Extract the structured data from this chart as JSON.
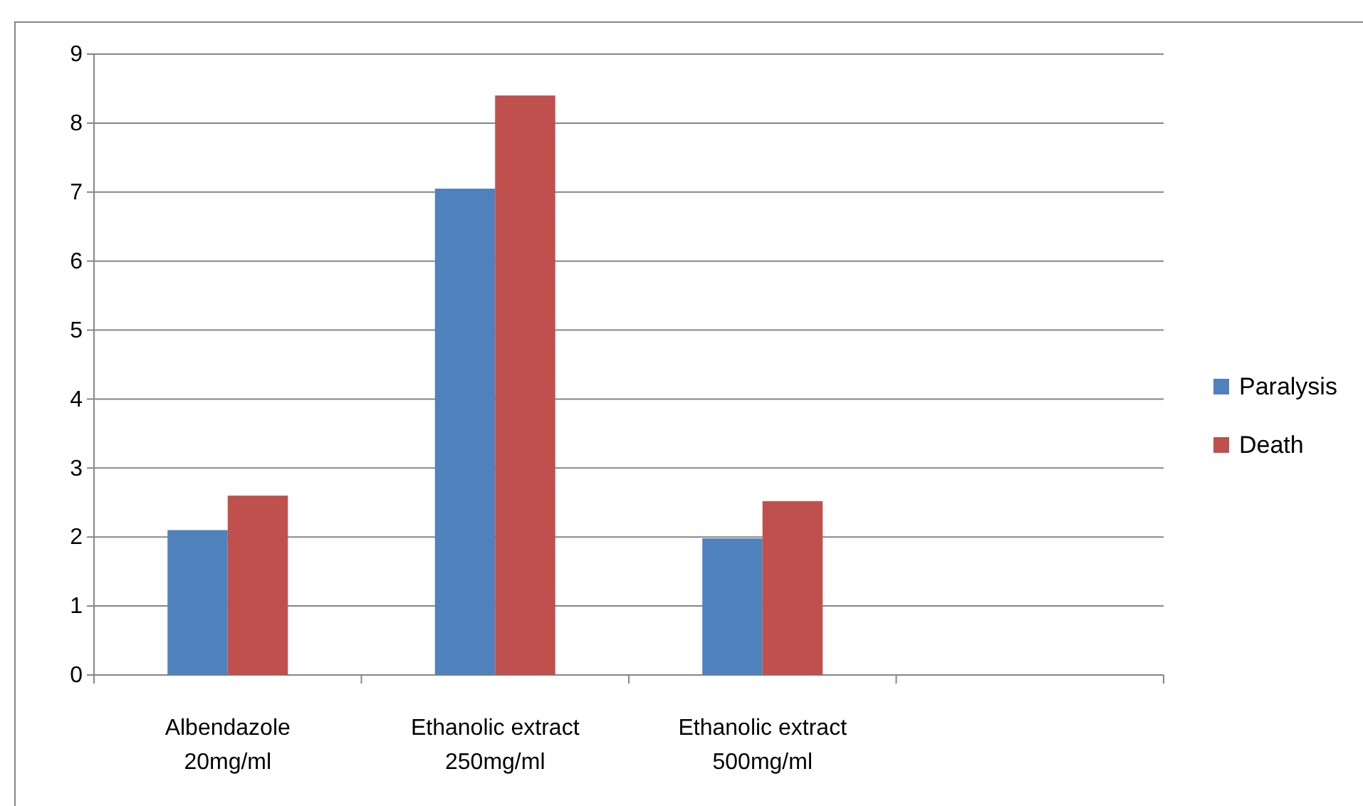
{
  "chart_data": {
    "type": "bar",
    "categories": [
      "Albendazole 20mg/ml",
      "Ethanolic extract 250mg/ml",
      "Ethanolic extract 500mg/ml",
      null
    ],
    "series": [
      {
        "name": "Paralysis",
        "color": "#4f81bd",
        "values": [
          2.1,
          7.05,
          1.98,
          null
        ]
      },
      {
        "name": "Death",
        "color": "#c0504d",
        "values": [
          2.6,
          8.4,
          2.52,
          null
        ]
      }
    ],
    "ylim": [
      0,
      9
    ],
    "yticks": [
      0,
      1,
      2,
      3,
      4,
      5,
      6,
      7,
      8,
      9
    ],
    "grid": "y",
    "legend": "right"
  }
}
